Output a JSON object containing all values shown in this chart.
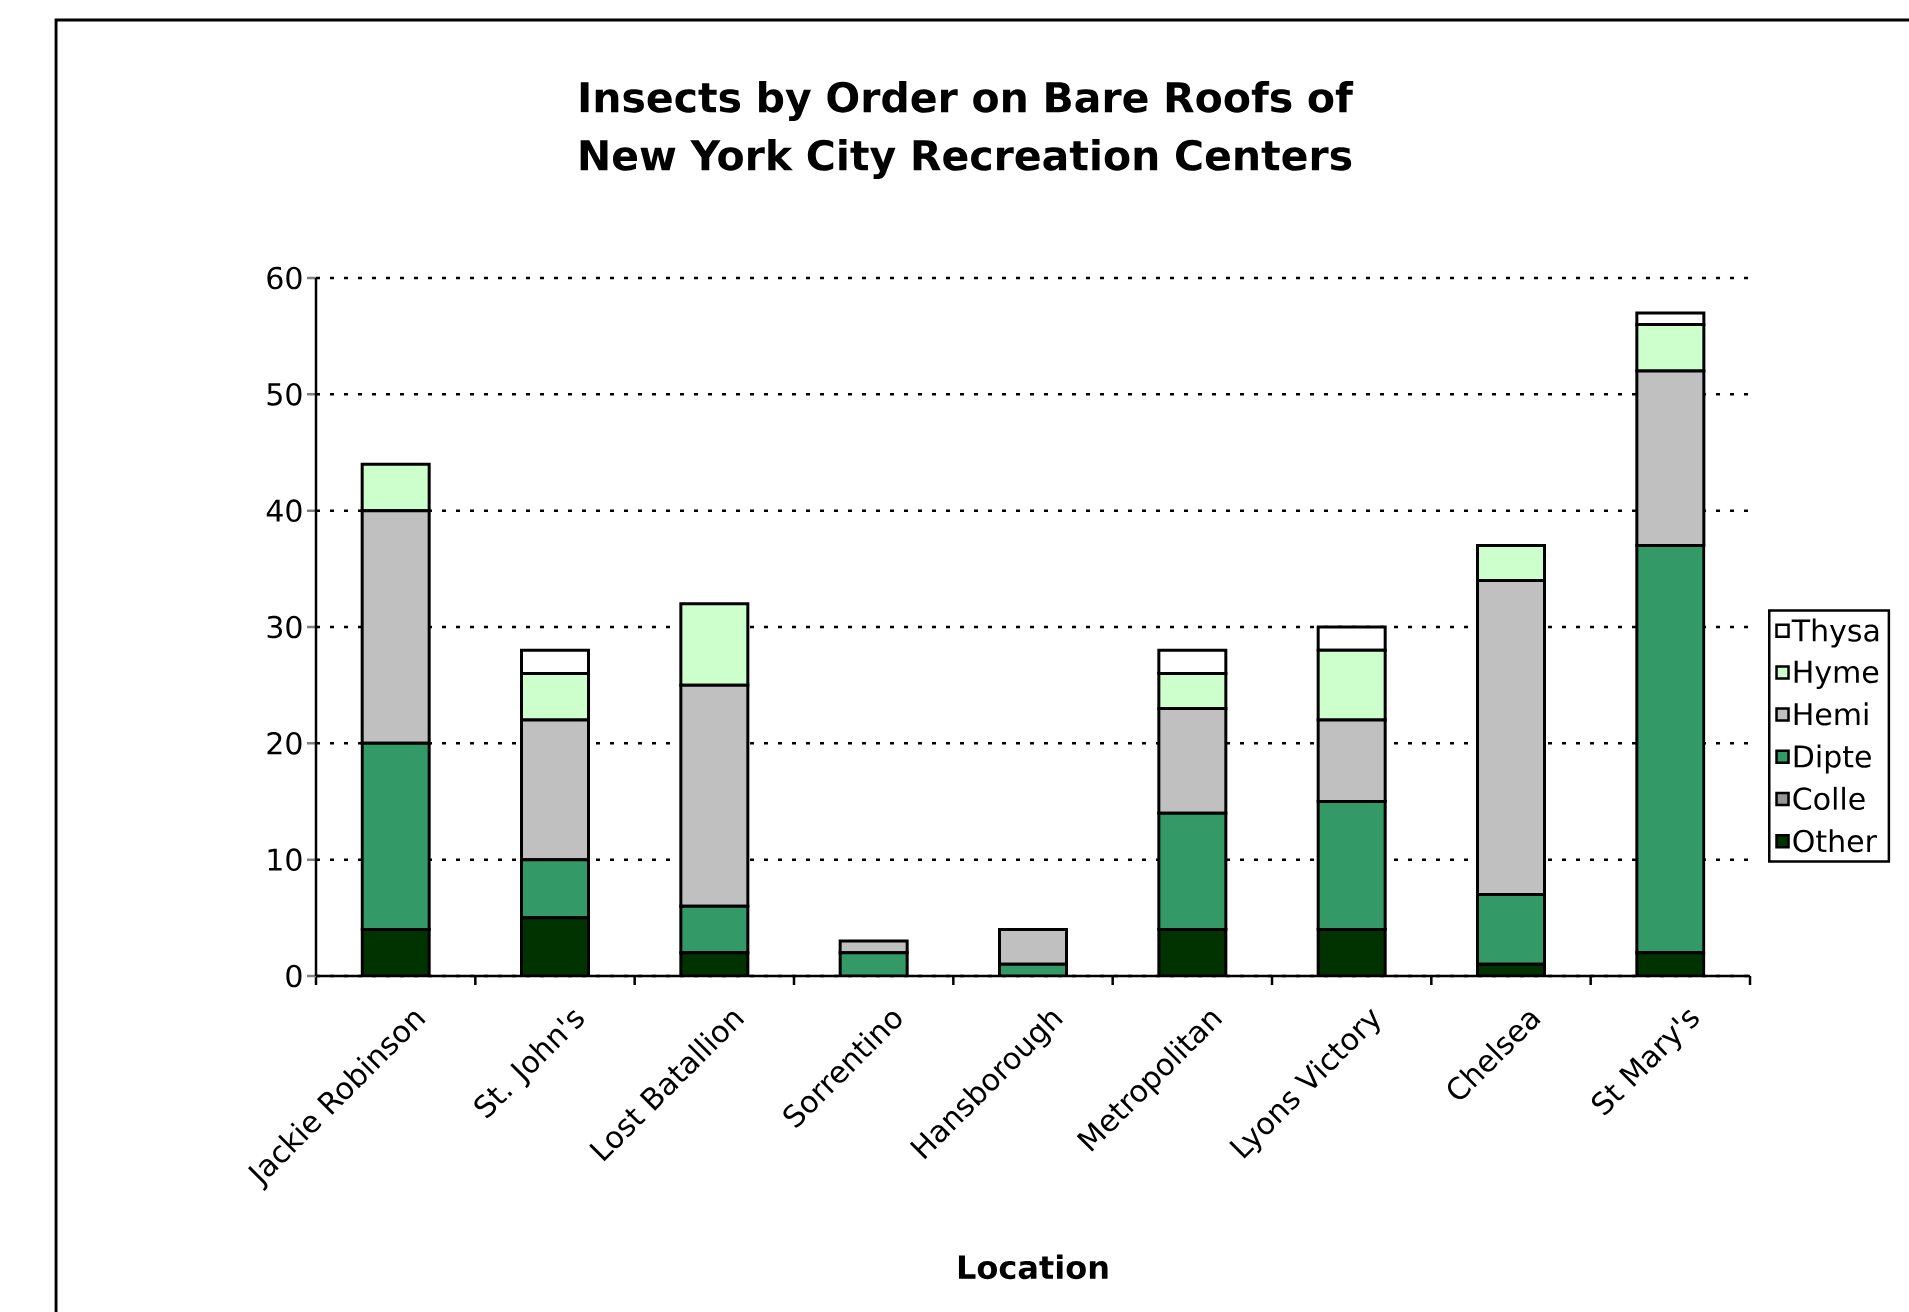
{
  "chart_data": {
    "type": "bar",
    "stacked": true,
    "title": "Insects by Order on Bare Roofs of New York City Recreation Centers",
    "xlabel": "Location",
    "categories": [
      "Jackie Robinson",
      "St. John's",
      "Lost Batallion",
      "Sorrentino",
      "Hansborough",
      "Metropolitan",
      "Lyons Victory",
      "Chelsea",
      "St Mary's"
    ],
    "series": [
      {
        "name": "Other",
        "color": "#003300",
        "values": [
          4,
          5,
          2,
          0,
          0,
          4,
          4,
          1,
          2
        ]
      },
      {
        "name": "Colle",
        "color": "#969696",
        "values": [
          0,
          0,
          0,
          0,
          0,
          0,
          0,
          0,
          0
        ]
      },
      {
        "name": "Dipte",
        "color": "#339966",
        "values": [
          16,
          5,
          4,
          2,
          1,
          10,
          11,
          6,
          35
        ]
      },
      {
        "name": "Hemi",
        "color": "#c0c0c0",
        "values": [
          20,
          12,
          19,
          1,
          3,
          9,
          7,
          27,
          15
        ]
      },
      {
        "name": "Hyme",
        "color": "#ccffcc",
        "values": [
          4,
          4,
          7,
          0,
          0,
          3,
          6,
          3,
          4
        ]
      },
      {
        "name": "Thysa",
        "color": "#ffffff",
        "values": [
          0,
          2,
          0,
          0,
          0,
          2,
          2,
          0,
          1
        ]
      }
    ],
    "ylim": [
      0,
      60
    ],
    "yticks": [
      0,
      10,
      20,
      30,
      40,
      50,
      60
    ],
    "grid": "y",
    "legend": "right"
  }
}
